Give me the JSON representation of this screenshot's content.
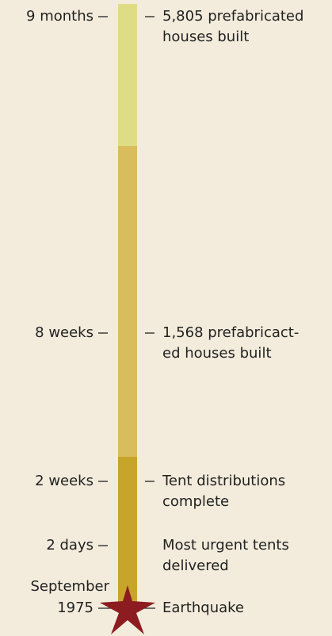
{
  "timeline": {
    "events": [
      {
        "left": [
          "9 months"
        ],
        "right": [
          "5,805 prefabricated",
          "houses built"
        ]
      },
      {
        "left": [
          "8 weeks"
        ],
        "right": [
          "1,568 prefabricact-",
          "ed houses built"
        ]
      },
      {
        "left": [
          "2 weeks"
        ],
        "right": [
          "Tent distributions",
          "complete"
        ]
      },
      {
        "left": [
          "2 days"
        ],
        "right": [
          "Most urgent tents",
          "delivered"
        ]
      },
      {
        "left": [
          "September",
          "1975"
        ],
        "right": [
          "Earthquake"
        ]
      }
    ]
  }
}
